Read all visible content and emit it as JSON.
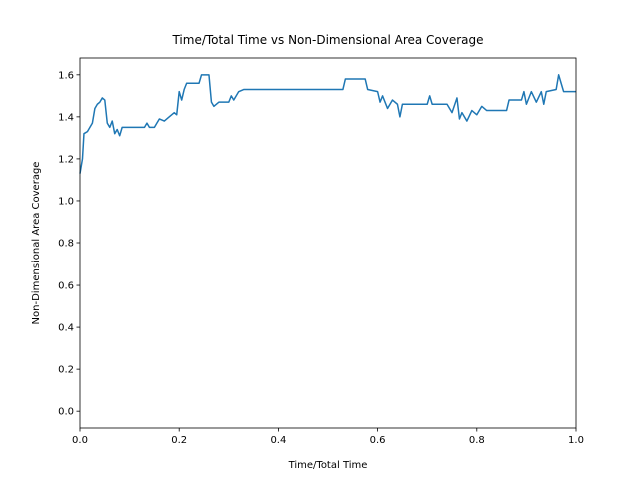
{
  "chart_data": {
    "type": "line",
    "title": "Time/Total Time vs Non-Dimensional Area Coverage",
    "x_label": "Time/Total Time",
    "y_label": "Non-Dimensional Area Coverage",
    "xlim": [
      0,
      1
    ],
    "ylim": [
      -0.08,
      1.68
    ],
    "xticks": [
      {
        "value": 0,
        "label": "0.0"
      },
      0.2,
      0.4,
      0.6,
      0.8,
      {
        "value": 1,
        "label": "1.0"
      }
    ],
    "yticks": [
      {
        "value": 0,
        "label": "0.0"
      },
      0.2,
      0.4,
      0.6,
      0.8,
      {
        "value": 1,
        "label": "1.0"
      },
      1.2,
      1.4,
      1.6
    ],
    "grid": false,
    "series": [
      {
        "color": "#1f77b4",
        "x": [
          0,
          0.005,
          0.008,
          0.015,
          0.02,
          0.025,
          0.03,
          0.035,
          0.04,
          0.045,
          0.05,
          0.055,
          0.06,
          0.065,
          0.07,
          0.075,
          0.08,
          0.085,
          0.13,
          0.135,
          0.14,
          0.15,
          0.155,
          0.16,
          0.17,
          0.18,
          0.19,
          0.195,
          0.2,
          0.205,
          0.21,
          0.215,
          0.24,
          0.245,
          0.26,
          0.265,
          0.27,
          0.28,
          0.3,
          0.305,
          0.31,
          0.32,
          0.33,
          0.53,
          0.535,
          0.575,
          0.58,
          0.6,
          0.605,
          0.61,
          0.62,
          0.63,
          0.64,
          0.645,
          0.65,
          0.7,
          0.705,
          0.71,
          0.74,
          0.75,
          0.76,
          0.765,
          0.77,
          0.78,
          0.79,
          0.8,
          0.81,
          0.82,
          0.86,
          0.865,
          0.89,
          0.895,
          0.9,
          0.91,
          0.92,
          0.93,
          0.935,
          0.94,
          0.96,
          0.965,
          0.97,
          0.975,
          1.0
        ],
        "values": [
          1.13,
          1.2,
          1.32,
          1.33,
          1.35,
          1.37,
          1.44,
          1.46,
          1.47,
          1.49,
          1.48,
          1.37,
          1.35,
          1.38,
          1.32,
          1.34,
          1.31,
          1.35,
          1.35,
          1.37,
          1.35,
          1.35,
          1.37,
          1.39,
          1.38,
          1.4,
          1.42,
          1.41,
          1.52,
          1.48,
          1.53,
          1.56,
          1.56,
          1.6,
          1.6,
          1.47,
          1.45,
          1.47,
          1.47,
          1.5,
          1.48,
          1.52,
          1.53,
          1.53,
          1.58,
          1.58,
          1.53,
          1.52,
          1.47,
          1.5,
          1.44,
          1.48,
          1.46,
          1.4,
          1.46,
          1.46,
          1.5,
          1.46,
          1.46,
          1.42,
          1.49,
          1.39,
          1.42,
          1.38,
          1.43,
          1.41,
          1.45,
          1.43,
          1.43,
          1.48,
          1.48,
          1.52,
          1.46,
          1.52,
          1.47,
          1.52,
          1.46,
          1.52,
          1.53,
          1.6,
          1.56,
          1.52,
          1.52
        ]
      }
    ]
  }
}
